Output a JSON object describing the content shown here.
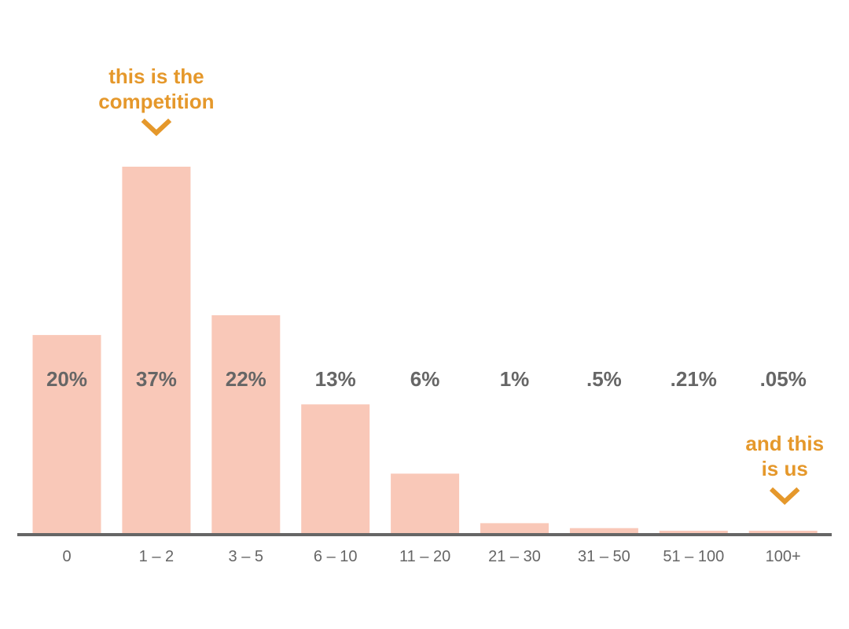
{
  "chart_data": {
    "type": "bar",
    "categories": [
      "0",
      "1 – 2",
      "3 – 5",
      "6 – 10",
      "11 – 20",
      "21 – 30",
      "31 – 50",
      "51 – 100",
      "100+"
    ],
    "values": [
      20,
      37,
      22,
      13,
      6,
      1,
      0.5,
      0.21,
      0.05
    ],
    "value_labels": [
      "20%",
      "37%",
      "22%",
      "13%",
      "6%",
      "1%",
      ".5%",
      ".21%",
      ".05%"
    ],
    "ylim": [
      0,
      37
    ],
    "grid": false,
    "colors": {
      "bar": "#f9c8b8",
      "axis": "#666666",
      "label": "#666666",
      "annotation": "#e5982b"
    },
    "annotations": [
      {
        "category": "1 – 2",
        "lines": [
          "this is the",
          "competition"
        ],
        "icon": "chevron-down-icon"
      },
      {
        "category": "100+",
        "lines": [
          "and this",
          "is us"
        ],
        "icon": "chevron-down-icon"
      }
    ]
  }
}
